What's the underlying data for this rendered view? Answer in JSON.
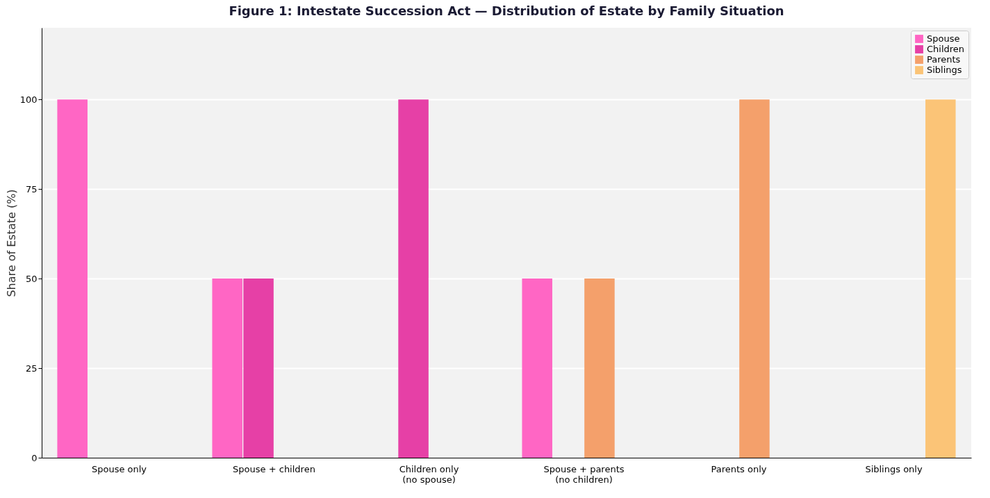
{
  "chart_data": {
    "type": "bar",
    "title": "Figure 1: Intestate Succession Act — Distribution of Estate by Family Situation",
    "ylabel": "Share of Estate (%)",
    "categories": [
      "Spouse only",
      "Spouse + children",
      "Children only\n(no spouse)",
      "Spouse + parents\n(no children)",
      "Parents only",
      "Siblings only"
    ],
    "series": [
      {
        "name": "Spouse",
        "color": "#ff66c4",
        "values": [
          100,
          50,
          0,
          50,
          0,
          0
        ]
      },
      {
        "name": "Children",
        "color": "#e640a6",
        "values": [
          0,
          50,
          100,
          0,
          0,
          0
        ]
      },
      {
        "name": "Parents",
        "color": "#f4a06b",
        "values": [
          0,
          0,
          0,
          50,
          100,
          0
        ]
      },
      {
        "name": "Siblings",
        "color": "#fbc477",
        "values": [
          0,
          0,
          0,
          0,
          0,
          100
        ]
      }
    ],
    "ylim": [
      0,
      120
    ],
    "yticks": [
      0,
      25,
      50,
      75,
      100
    ],
    "grid": "y",
    "legend": "top right"
  }
}
